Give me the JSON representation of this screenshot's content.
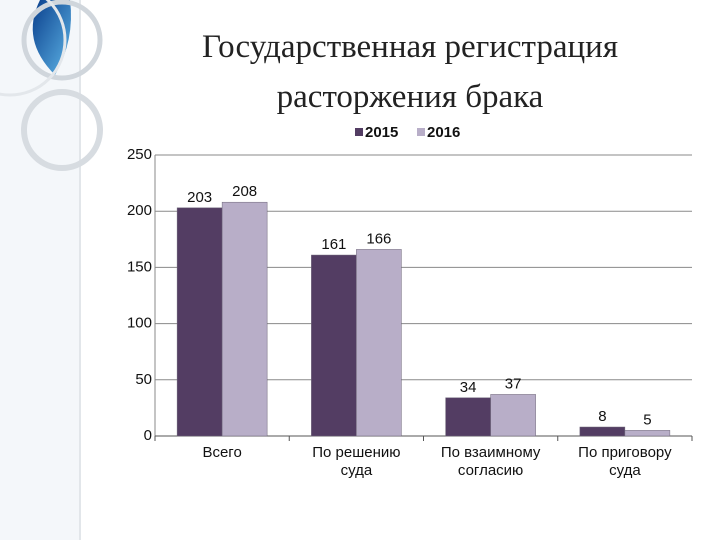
{
  "chart_data": {
    "type": "bar",
    "title": "Государственная регистрация расторжения брака",
    "categories": [
      "Всего",
      "По решению суда",
      "По взаимному согласию",
      "По приговору суда"
    ],
    "series": [
      {
        "name": "2015",
        "color": "#533d63",
        "values": [
          203,
          161,
          34,
          8
        ]
      },
      {
        "name": "2016",
        "color": "#b8aec8",
        "values": [
          208,
          166,
          37,
          5
        ]
      }
    ],
    "ylim": [
      0,
      250
    ],
    "yticks": [
      0,
      50,
      100,
      150,
      200,
      250
    ],
    "grid": true,
    "legend": "top"
  }
}
